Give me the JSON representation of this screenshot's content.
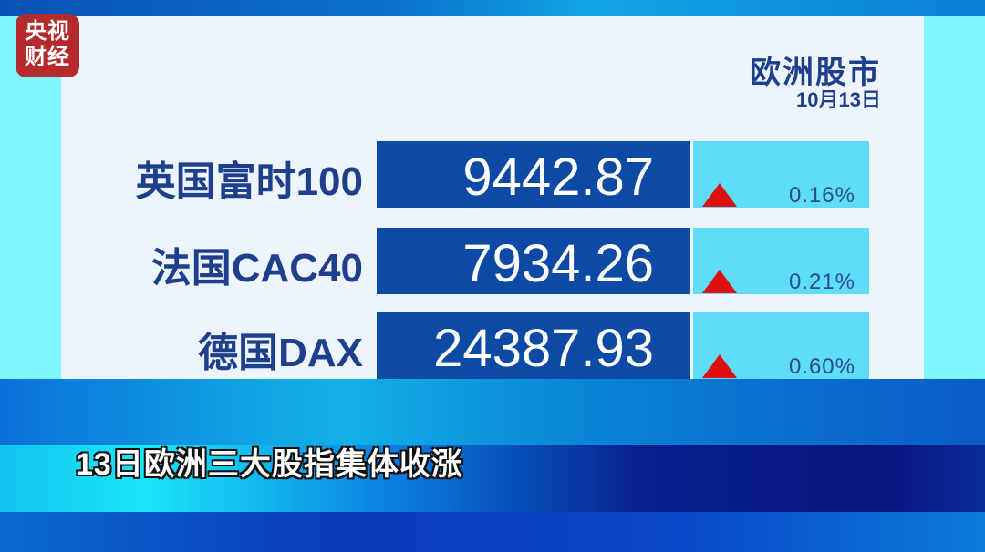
{
  "logo": {
    "text": "央视财经",
    "line1": "央视",
    "line2": "财经",
    "brand_color": "#b52a2a"
  },
  "header": {
    "title": "欧洲股市",
    "date": "10月13日"
  },
  "indices": [
    {
      "name": "英国富时100",
      "value": "9442.87",
      "direction": "up",
      "change": "0.16%"
    },
    {
      "name": "法国CAC40",
      "value": "7934.26",
      "direction": "up",
      "change": "0.21%"
    },
    {
      "name": "德国DAX",
      "value": "24387.93",
      "direction": "up",
      "change": "0.60%"
    }
  ],
  "colors": {
    "up": "#dd1010",
    "value_bg": "#0c4aa6",
    "change_bg": "#5fdcf8"
  },
  "subtitle": "13日欧洲三大股指集体收涨"
}
